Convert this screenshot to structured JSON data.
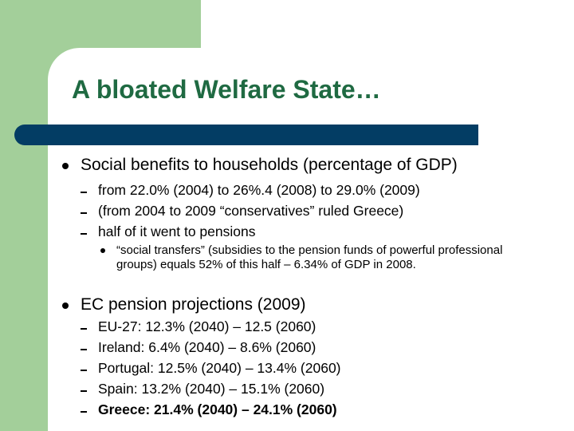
{
  "slide": {
    "title": "A bloated Welfare State…",
    "sections": [
      {
        "heading": "Social benefits to households (percentage of GDP)",
        "items": [
          "from 22.0% (2004) to 26%.4 (2008) to 29.0% (2009)",
          "(from 2004 to 2009 “conservatives” ruled Greece)",
          "half of it went to pensions"
        ],
        "subitem": "“social transfers” (subsidies to the pension funds of powerful professional groups) equals 52% of this half – 6.34% of GDP in 2008."
      },
      {
        "heading": "EC pension projections (2009)",
        "items": [
          "EU-27: 12.3% (2040) – 12.5 (2060)",
          "Ireland: 6.4% (2040) – 8.6% (2060)",
          "Portugal: 12.5% (2040) – 13.4% (2060)",
          "Spain: 13.2% (2040) – 15.1% (2060)",
          "Greece: 21.4% (2040) – 24.1% (2060)"
        ]
      }
    ]
  },
  "colors": {
    "green_block": "#a3cf9a",
    "title_text": "#1f6a42",
    "title_bar": "#033d64"
  }
}
